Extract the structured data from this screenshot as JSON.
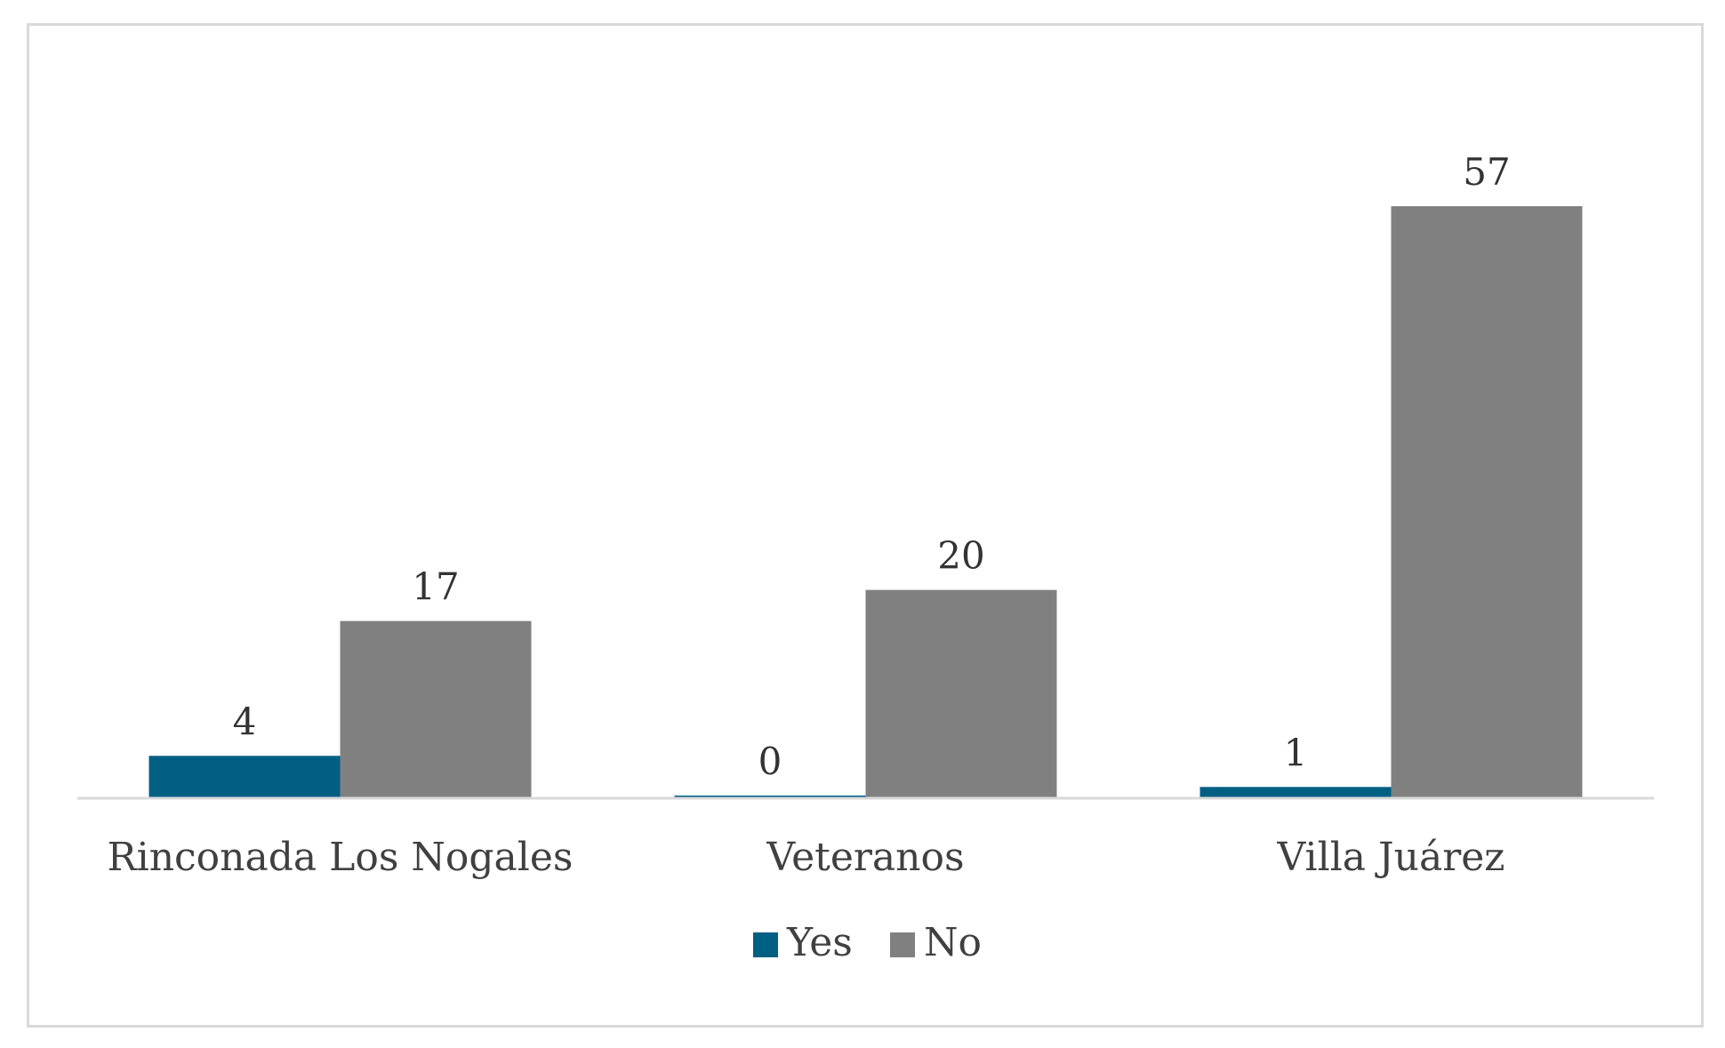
{
  "chart_data": {
    "type": "bar",
    "title": "",
    "xlabel": "",
    "ylabel": "",
    "categories": [
      "Rinconada Los Nogales",
      "Veteranos",
      "Villa Juárez"
    ],
    "series": [
      {
        "name": "Yes",
        "values": [
          4,
          0,
          1
        ],
        "color": "#005f83"
      },
      {
        "name": "No",
        "values": [
          17,
          20,
          57
        ],
        "color": "#808080"
      }
    ],
    "ylim": [
      0,
      57
    ],
    "grid": false,
    "data_labels": true,
    "legend_position": "bottom"
  }
}
